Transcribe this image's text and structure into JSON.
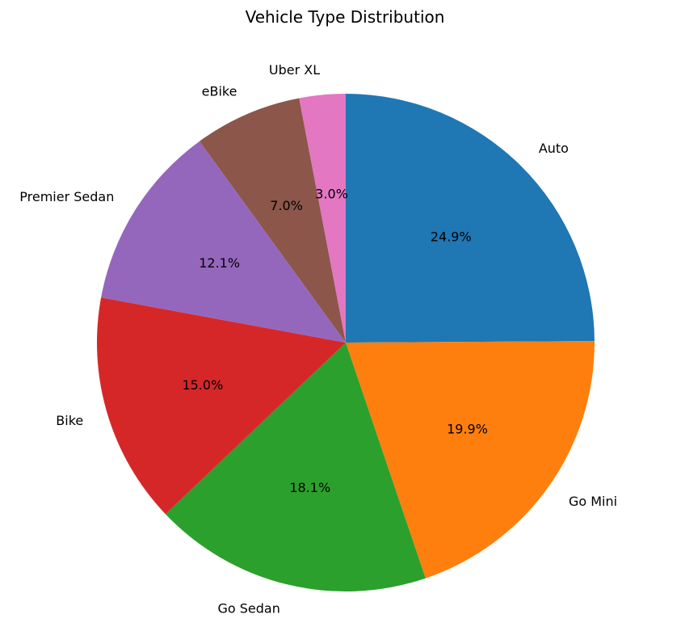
{
  "chart_data": {
    "type": "pie",
    "title": "Vehicle Type Distribution",
    "start_angle_deg": 90,
    "direction": "clockwise",
    "slices": [
      {
        "label": "Auto",
        "value": 24.9,
        "pct_label": "24.9%",
        "color": "#1f77b4"
      },
      {
        "label": "Go Mini",
        "value": 19.9,
        "pct_label": "19.9%",
        "color": "#ff7f0e"
      },
      {
        "label": "Go Sedan",
        "value": 18.1,
        "pct_label": "18.1%",
        "color": "#2ca02c"
      },
      {
        "label": "Bike",
        "value": 15.0,
        "pct_label": "15.0%",
        "color": "#d62728"
      },
      {
        "label": "Premier Sedan",
        "value": 12.1,
        "pct_label": "12.1%",
        "color": "#9467bd"
      },
      {
        "label": "eBike",
        "value": 7.0,
        "pct_label": "7.0%",
        "color": "#8c564b"
      },
      {
        "label": "Uber XL",
        "value": 3.0,
        "pct_label": "3.0%",
        "color": "#e377c2"
      }
    ]
  }
}
